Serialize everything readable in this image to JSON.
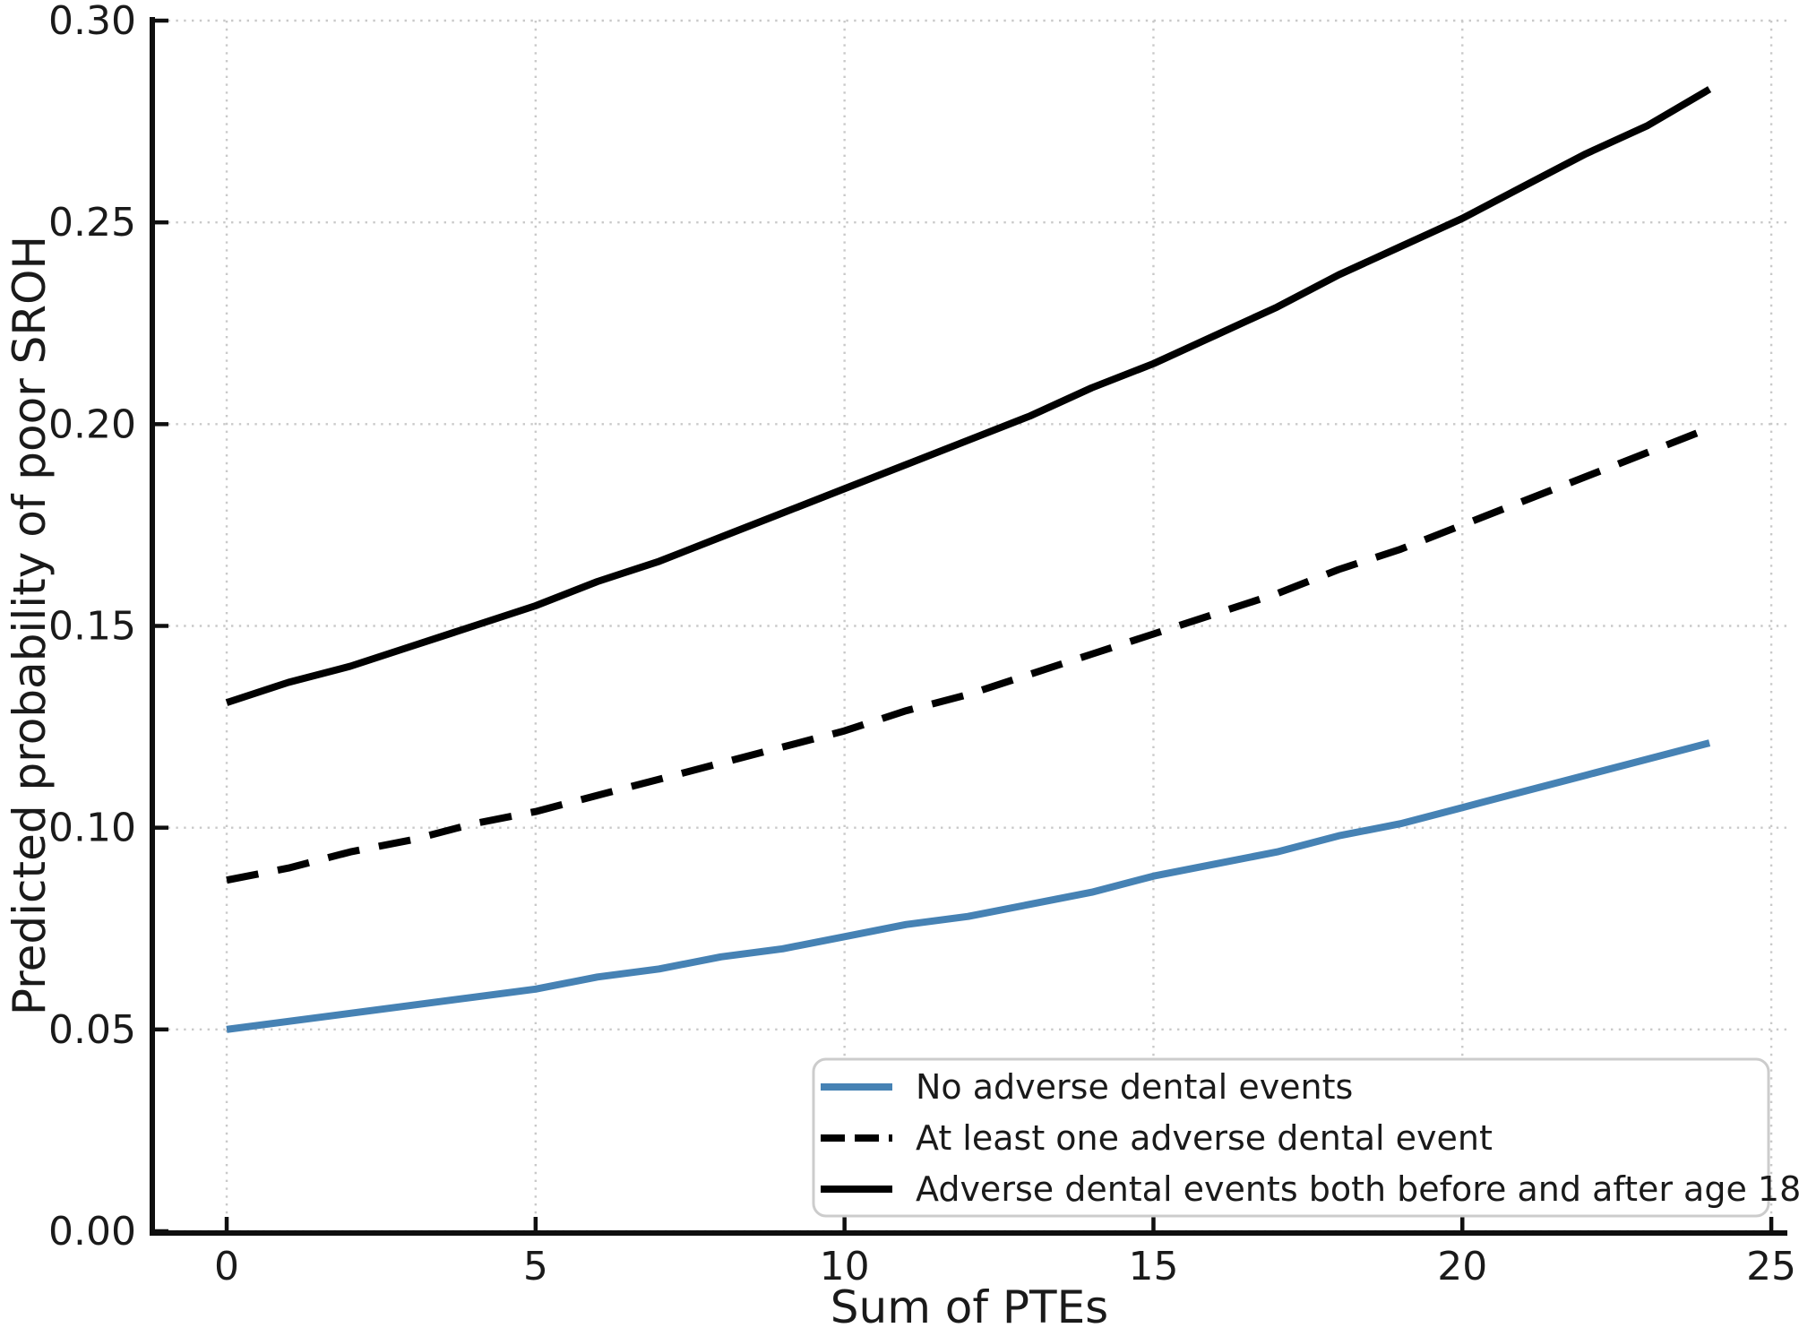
{
  "figure": {
    "background": "#ffffff"
  },
  "colors": {
    "grid": "#c9c9c9",
    "spine": "#0f0f0f",
    "tick": "#0f0f0f",
    "text": "#1a1a1a",
    "legend_border": "#cccccc",
    "legend_background": "#ffffff",
    "series_blue": "#4682B4",
    "series_black": "#000000"
  },
  "chart_data": {
    "type": "line",
    "title": "",
    "xlabel": "Sum of PTEs",
    "ylabel": "Predicted probability of poor SROH",
    "xlim": [
      -1.204,
      25.26
    ],
    "ylim": [
      0.0,
      0.3
    ],
    "grid": "dotted",
    "legend_position": "lower right",
    "xticks": [
      0,
      5,
      10,
      15,
      20,
      25
    ],
    "xtick_labels": [
      "0",
      "5",
      "10",
      "15",
      "20",
      "25"
    ],
    "yticks": [
      0.0,
      0.05,
      0.1,
      0.15,
      0.2,
      0.25,
      0.3
    ],
    "ytick_labels": [
      "0.00",
      "0.05",
      "0.10",
      "0.15",
      "0.20",
      "0.25",
      "0.30"
    ],
    "x": [
      0,
      1,
      2,
      3,
      4,
      5,
      6,
      7,
      8,
      9,
      10,
      11,
      12,
      13,
      14,
      15,
      16,
      17,
      18,
      19,
      20,
      21,
      22,
      23,
      24
    ],
    "series": [
      {
        "name": "No adverse dental events",
        "color": "#4682B4",
        "style": "solid",
        "values": [
          0.05,
          0.052,
          0.054,
          0.056,
          0.058,
          0.06,
          0.063,
          0.065,
          0.068,
          0.07,
          0.073,
          0.076,
          0.078,
          0.081,
          0.084,
          0.088,
          0.091,
          0.094,
          0.098,
          0.101,
          0.105,
          0.109,
          0.113,
          0.117,
          0.121
        ]
      },
      {
        "name": "At least one adverse dental event",
        "color": "#000000",
        "style": "dashed",
        "values": [
          0.087,
          0.09,
          0.094,
          0.097,
          0.101,
          0.104,
          0.108,
          0.112,
          0.116,
          0.12,
          0.124,
          0.129,
          0.133,
          0.138,
          0.143,
          0.148,
          0.153,
          0.158,
          0.164,
          0.169,
          0.175,
          0.181,
          0.187,
          0.193,
          0.199
        ]
      },
      {
        "name": "Adverse dental events both before and after age 18",
        "color": "#000000",
        "style": "solid",
        "values": [
          0.131,
          0.136,
          0.14,
          0.145,
          0.15,
          0.155,
          0.161,
          0.166,
          0.172,
          0.178,
          0.184,
          0.19,
          0.196,
          0.202,
          0.209,
          0.215,
          0.222,
          0.229,
          0.237,
          0.244,
          0.251,
          0.259,
          0.267,
          0.274,
          0.283
        ]
      }
    ]
  }
}
